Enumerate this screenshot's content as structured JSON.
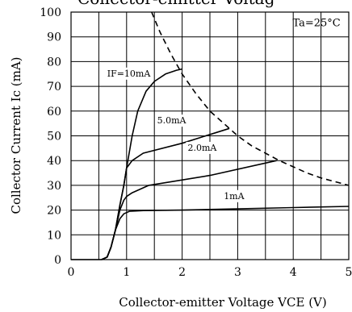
{
  "chart_data": {
    "type": "line",
    "title": "Collector-emitter Voltag",
    "xlabel": "Collector-emitter Voltage VCE (V)",
    "ylabel": "Collector Current Ic (mA)",
    "xlim": [
      0,
      5
    ],
    "ylim": [
      0,
      100
    ],
    "x_ticks": [
      "0",
      "1",
      "2",
      "3",
      "4",
      "5"
    ],
    "y_ticks": [
      "0",
      "10",
      "20",
      "30",
      "40",
      "50",
      "60",
      "70",
      "80",
      "90",
      "100"
    ],
    "grid": true,
    "annotation": "Ta=25°C",
    "series": [
      {
        "name": "IF=10mA",
        "x": [
          0,
          0.55,
          0.65,
          0.72,
          0.8,
          0.88,
          0.95,
          1.0,
          1.1,
          1.2,
          1.35,
          1.5,
          1.7,
          1.9,
          2.0
        ],
        "y": [
          0,
          0,
          1,
          5,
          12,
          22,
          30,
          37,
          50,
          60,
          68,
          72,
          75,
          76.5,
          77
        ]
      },
      {
        "name": "5.0mA",
        "x": [
          0.55,
          0.65,
          0.72,
          0.8,
          0.88,
          0.95,
          1.0,
          1.1,
          1.3,
          2.0,
          2.85
        ],
        "y": [
          0,
          1,
          5,
          12,
          22,
          30,
          37,
          40,
          43,
          47,
          53
        ]
      },
      {
        "name": "2.0mA",
        "x": [
          0.55,
          0.65,
          0.72,
          0.8,
          0.88,
          0.95,
          1.0,
          1.1,
          1.4,
          2.5,
          3.7
        ],
        "y": [
          0,
          1,
          5,
          12,
          20,
          24,
          25.5,
          27,
          30,
          34,
          40
        ]
      },
      {
        "name": "1mA",
        "x": [
          0.55,
          0.65,
          0.72,
          0.8,
          0.88,
          0.95,
          1.0,
          1.05,
          1.3,
          2.0,
          3.0,
          4.0,
          5.0
        ],
        "y": [
          0,
          1,
          5,
          12,
          16.5,
          18.5,
          19,
          19.5,
          19.8,
          20,
          20.5,
          21,
          21.5
        ]
      }
    ],
    "power_limit_curve": {
      "style": "dashed",
      "x": [
        1.45,
        1.6,
        1.8,
        2.0,
        2.25,
        2.5,
        2.75,
        3.0,
        3.25,
        3.5,
        3.75,
        4.0,
        4.25,
        4.5,
        4.75,
        5.0
      ],
      "y": [
        100,
        92,
        83,
        75,
        67,
        60,
        55,
        50,
        46,
        43,
        40,
        37.5,
        35,
        33,
        31.5,
        30
      ]
    },
    "curve_labels": [
      {
        "text": "IF=10mA",
        "x": 0.65,
        "y": 74
      },
      {
        "text": "5.0mA",
        "x": 1.55,
        "y": 55
      },
      {
        "text": "2.0mA",
        "x": 2.1,
        "y": 44
      },
      {
        "text": "1mA",
        "x": 2.75,
        "y": 24.5
      }
    ]
  }
}
